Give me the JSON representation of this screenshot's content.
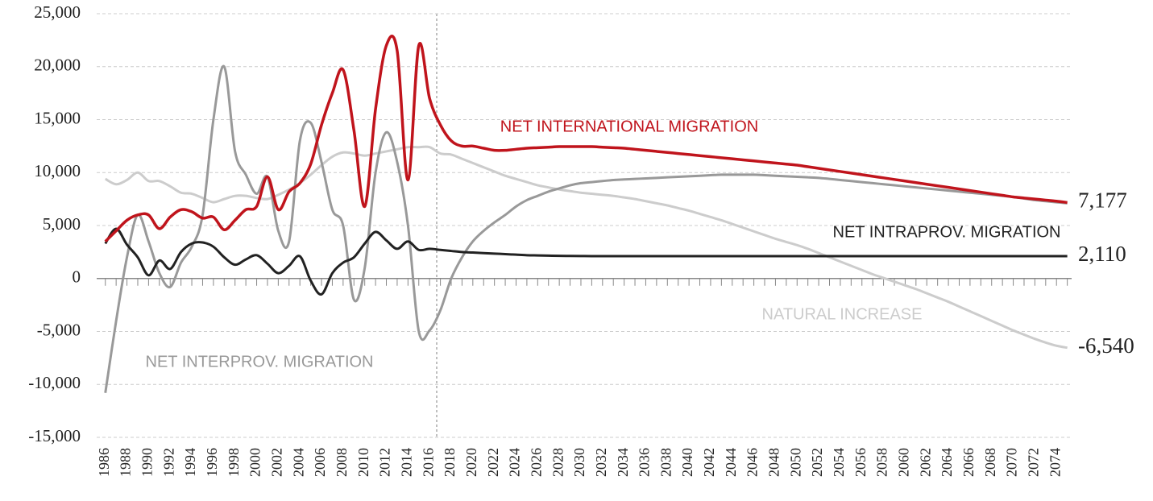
{
  "chart_data": {
    "type": "line",
    "x": [
      1986,
      1987,
      1988,
      1989,
      1990,
      1991,
      1992,
      1993,
      1994,
      1995,
      1996,
      1997,
      1998,
      1999,
      2000,
      2001,
      2002,
      2003,
      2004,
      2005,
      2006,
      2007,
      2008,
      2009,
      2010,
      2011,
      2012,
      2013,
      2014,
      2015,
      2016,
      2017,
      2018,
      2019,
      2020,
      2021,
      2022,
      2023,
      2024,
      2025,
      2026,
      2027,
      2028,
      2029,
      2030,
      2031,
      2032,
      2033,
      2034,
      2035,
      2036,
      2037,
      2038,
      2039,
      2040,
      2041,
      2042,
      2043,
      2044,
      2045,
      2046,
      2047,
      2048,
      2049,
      2050,
      2051,
      2052,
      2053,
      2054,
      2055,
      2056,
      2057,
      2058,
      2059,
      2060,
      2061,
      2062,
      2063,
      2064,
      2065,
      2066,
      2067,
      2068,
      2069,
      2070,
      2071,
      2072,
      2073,
      2074,
      2075
    ],
    "xlim": [
      1985.2,
      2075.4
    ],
    "xticks": [
      1986,
      1988,
      1990,
      1992,
      1994,
      1996,
      1998,
      2000,
      2002,
      2004,
      2006,
      2008,
      2010,
      2012,
      2014,
      2016,
      2018,
      2020,
      2022,
      2024,
      2026,
      2028,
      2030,
      2032,
      2034,
      2036,
      2038,
      2040,
      2042,
      2044,
      2046,
      2048,
      2050,
      2052,
      2054,
      2056,
      2058,
      2060,
      2062,
      2064,
      2066,
      2068,
      2070,
      2072,
      2074
    ],
    "ylim": [
      -15000,
      25000
    ],
    "yticks": [
      {
        "value": -15000,
        "label": "-15,000"
      },
      {
        "value": -10000,
        "label": "-10,000"
      },
      {
        "value": -5000,
        "label": "-5,000"
      },
      0,
      {
        "value": 5000,
        "label": "5,000"
      },
      {
        "value": 10000,
        "label": "10,000"
      },
      {
        "value": 15000,
        "label": "15,000"
      },
      {
        "value": 20000,
        "label": "20,000"
      },
      {
        "value": 25000,
        "label": "25,000"
      }
    ],
    "grid": true,
    "series": [
      {
        "name": "NATURAL INCREASE",
        "color": "#cccccc",
        "end_label": "-6,540",
        "values": [
          9400,
          8900,
          9300,
          10000,
          9200,
          9200,
          8700,
          8100,
          8000,
          7600,
          7200,
          7500,
          7800,
          7800,
          7600,
          7500,
          7900,
          8400,
          9000,
          9800,
          10700,
          11500,
          11900,
          11800,
          11600,
          11800,
          12000,
          12200,
          12400,
          12400,
          12400,
          11800,
          11700,
          11300,
          10900,
          10500,
          10100,
          9700,
          9400,
          9100,
          8800,
          8600,
          8400,
          8250,
          8100,
          8000,
          7900,
          7800,
          7650,
          7500,
          7300,
          7100,
          6900,
          6650,
          6400,
          6100,
          5800,
          5500,
          5150,
          4800,
          4450,
          4100,
          3750,
          3450,
          3150,
          2800,
          2400,
          2000,
          1600,
          1200,
          800,
          400,
          50,
          -300,
          -650,
          -1000,
          -1400,
          -1800,
          -2200,
          -2650,
          -3100,
          -3550,
          -4000,
          -4450,
          -4900,
          -5300,
          -5700,
          -6050,
          -6350,
          -6540
        ]
      },
      {
        "name": "NET INTERPROV. MIGRATION",
        "color": "#999999",
        "values": [
          -10800,
          -4000,
          2000,
          6000,
          3500,
          500,
          -800,
          1500,
          3000,
          6000,
          15000,
          20000,
          12000,
          9800,
          8000,
          9600,
          4500,
          3500,
          13000,
          14700,
          11000,
          6500,
          5000,
          -2000,
          1000,
          10000,
          13800,
          11000,
          5000,
          -5000,
          -4900,
          -3000,
          0,
          2000,
          3500,
          4500,
          5300,
          6000,
          6800,
          7400,
          7800,
          8200,
          8500,
          8800,
          9000,
          9100,
          9200,
          9300,
          9350,
          9400,
          9450,
          9500,
          9550,
          9600,
          9650,
          9700,
          9750,
          9800,
          9800,
          9800,
          9800,
          9750,
          9700,
          9650,
          9600,
          9550,
          9500,
          9400,
          9300,
          9200,
          9100,
          9000,
          8900,
          8800,
          8700,
          8600,
          8500,
          8400,
          8300,
          8200,
          8100,
          8000,
          7900,
          7800,
          7700,
          7550,
          7400,
          7300,
          7200,
          7100
        ]
      },
      {
        "name": "NET INTRAPROV. MIGRATION",
        "color": "#222222",
        "end_label": "2,110",
        "values": [
          3300,
          4700,
          3200,
          2000,
          300,
          1700,
          900,
          2500,
          3300,
          3400,
          3000,
          2000,
          1300,
          1800,
          2200,
          1400,
          500,
          1200,
          2100,
          -200,
          -1500,
          500,
          1500,
          2000,
          3300,
          4400,
          3600,
          2800,
          3500,
          2700,
          2800,
          2700,
          2600,
          2500,
          2450,
          2400,
          2350,
          2300,
          2250,
          2200,
          2180,
          2160,
          2140,
          2130,
          2120,
          2110,
          2110,
          2110,
          2110,
          2110,
          2110,
          2110,
          2110,
          2110,
          2110,
          2110,
          2110,
          2110,
          2110,
          2110,
          2110,
          2110,
          2110,
          2110,
          2110,
          2110,
          2110,
          2110,
          2110,
          2110,
          2110,
          2110,
          2110,
          2110,
          2110,
          2110,
          2110,
          2110,
          2110,
          2110,
          2110,
          2110,
          2110,
          2110,
          2110,
          2110,
          2110,
          2110,
          2110,
          2110
        ]
      },
      {
        "name": "NET INTERNATIONAL MIGRATION",
        "color": "#c0141c",
        "end_label": "7,177",
        "values": [
          3500,
          4500,
          5500,
          6000,
          6000,
          4700,
          5800,
          6500,
          6300,
          5700,
          5800,
          4600,
          5500,
          6500,
          6800,
          9600,
          6500,
          8200,
          9000,
          10800,
          14500,
          17500,
          19700,
          14000,
          6800,
          16000,
          22000,
          21500,
          9300,
          22000,
          17000,
          14500,
          13000,
          12500,
          12500,
          12300,
          12100,
          12100,
          12200,
          12300,
          12350,
          12400,
          12450,
          12450,
          12450,
          12450,
          12400,
          12350,
          12300,
          12200,
          12100,
          12000,
          11900,
          11800,
          11700,
          11600,
          11500,
          11400,
          11300,
          11200,
          11100,
          11000,
          10900,
          10800,
          10700,
          10550,
          10400,
          10250,
          10100,
          9950,
          9800,
          9650,
          9500,
          9350,
          9200,
          9050,
          8900,
          8750,
          8600,
          8450,
          8300,
          8150,
          8000,
          7850,
          7700,
          7600,
          7500,
          7400,
          7300,
          7177
        ]
      }
    ]
  }
}
